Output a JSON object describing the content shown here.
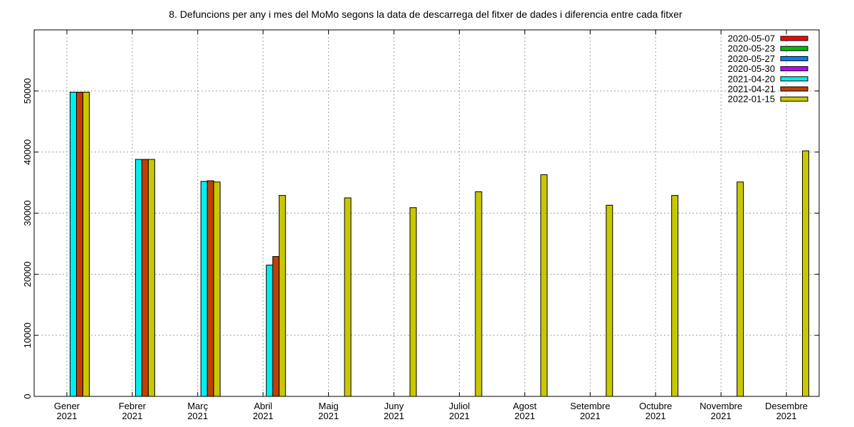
{
  "chart_data": {
    "type": "bar",
    "title": "8. Defuncions per any i mes del MoMo segons la data de descarrega del fitxer de dades i diferencia entre cada fitxer",
    "xlabel": "",
    "ylabel": "",
    "ylim": [
      0,
      60000
    ],
    "yticks": [
      0,
      10000,
      20000,
      30000,
      40000,
      50000
    ],
    "grid": true,
    "legend_position": "top-right",
    "categories": [
      {
        "month": "Gener",
        "year": "2021"
      },
      {
        "month": "Febrer",
        "year": "2021"
      },
      {
        "month": "Març",
        "year": "2021"
      },
      {
        "month": "Abril",
        "year": "2021"
      },
      {
        "month": "Maig",
        "year": "2021"
      },
      {
        "month": "Juny",
        "year": "2021"
      },
      {
        "month": "Juliol",
        "year": "2021"
      },
      {
        "month": "Agost",
        "year": "2021"
      },
      {
        "month": "Setembre",
        "year": "2021"
      },
      {
        "month": "Octubre",
        "year": "2021"
      },
      {
        "month": "Novembre",
        "year": "2021"
      },
      {
        "month": "Desembre",
        "year": "2021"
      }
    ],
    "series": [
      {
        "name": "2020-05-07",
        "color": "#ff0000",
        "values": [
          null,
          null,
          null,
          null,
          null,
          null,
          null,
          null,
          null,
          null,
          null,
          null
        ]
      },
      {
        "name": "2020-05-23",
        "color": "#00c000",
        "values": [
          null,
          null,
          null,
          null,
          null,
          null,
          null,
          null,
          null,
          null,
          null,
          null
        ]
      },
      {
        "name": "2020-05-27",
        "color": "#0080ff",
        "values": [
          null,
          null,
          null,
          null,
          null,
          null,
          null,
          null,
          null,
          null,
          null,
          null
        ]
      },
      {
        "name": "2020-05-30",
        "color": "#c000ff",
        "values": [
          null,
          null,
          null,
          null,
          null,
          null,
          null,
          null,
          null,
          null,
          null,
          null
        ]
      },
      {
        "name": "2021-04-20",
        "color": "#00eeee",
        "values": [
          49800,
          38800,
          35200,
          21500,
          null,
          null,
          null,
          null,
          null,
          null,
          null,
          null
        ]
      },
      {
        "name": "2021-04-21",
        "color": "#c04000",
        "values": [
          49800,
          38800,
          35300,
          22900,
          null,
          null,
          null,
          null,
          null,
          null,
          null,
          null
        ]
      },
      {
        "name": "2022-01-15",
        "color": "#c8c800",
        "values": [
          49800,
          38800,
          35100,
          32900,
          32500,
          30900,
          33500,
          36300,
          31300,
          32900,
          35100,
          40200
        ]
      }
    ]
  }
}
